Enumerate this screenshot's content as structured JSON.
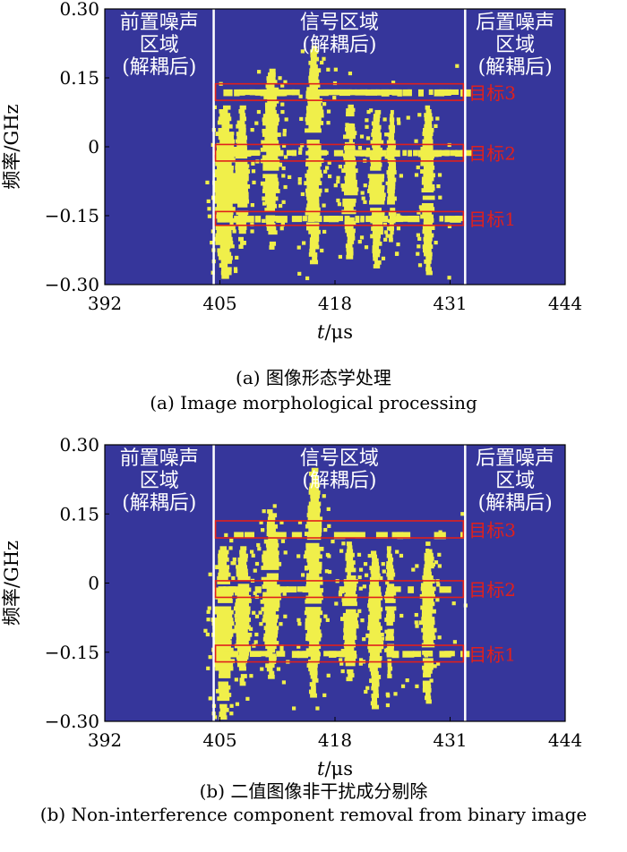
{
  "colors": {
    "background": "#36369b",
    "signal": "#f0ef4a",
    "divider": "#ffffff",
    "target_box": "#e0201c",
    "target_label": "#e0201c"
  },
  "chart_data": [
    {
      "type": "heatmap",
      "panel": "a",
      "xlabel_italic": "t",
      "xlabel_unit": "/μs",
      "ylabel": "频率/GHz",
      "xticks": [
        "392",
        "405",
        "418",
        "431",
        "444"
      ],
      "xtick_values": [
        392,
        405,
        418,
        431,
        444
      ],
      "yticks": [
        "0.30",
        "0.15",
        "0",
        "−0.15",
        "−0.30"
      ],
      "ytick_values": [
        0.3,
        0.15,
        0,
        -0.15,
        -0.3
      ],
      "xlim": [
        392,
        444
      ],
      "ylim": [
        -0.3,
        0.3
      ],
      "dividers_us": [
        404.3,
        432.7
      ],
      "regions": [
        {
          "lines": [
            "前置噪声",
            "区域",
            "(解耦后)"
          ]
        },
        {
          "lines": [
            "信号区域",
            "(解耦后)"
          ]
        },
        {
          "lines": [
            "后置噪声",
            "区域",
            "(解耦后)"
          ]
        }
      ],
      "targets": [
        {
          "label": "目标3",
          "freq_range_GHz": [
            0.101,
            0.137
          ]
        },
        {
          "label": "目标2",
          "freq_range_GHz": [
            -0.031,
            0.005
          ]
        },
        {
          "label": "目标1",
          "freq_range_GHz": [
            -0.171,
            -0.141
          ]
        }
      ],
      "blobs": [
        {
          "t_us": 405.6,
          "f_top": 0.09,
          "f_bottom": -0.28,
          "half_width_us": 0.9
        },
        {
          "t_us": 407.5,
          "f_top": 0.09,
          "f_bottom": -0.22,
          "half_width_us": 0.6
        },
        {
          "t_us": 410.8,
          "f_top": 0.17,
          "f_bottom": -0.22,
          "half_width_us": 0.7
        },
        {
          "t_us": 415.6,
          "f_top": 0.22,
          "f_bottom": -0.25,
          "half_width_us": 0.7
        },
        {
          "t_us": 419.7,
          "f_top": 0.1,
          "f_bottom": -0.24,
          "half_width_us": 0.6
        },
        {
          "t_us": 422.7,
          "f_top": 0.08,
          "f_bottom": -0.26,
          "half_width_us": 0.6
        },
        {
          "t_us": 424.4,
          "f_top": 0.08,
          "f_bottom": -0.2,
          "half_width_us": 0.4
        },
        {
          "t_us": 428.5,
          "f_top": 0.09,
          "f_bottom": -0.27,
          "half_width_us": 0.6
        }
      ],
      "bands": [
        {
          "f_GHz": 0.119,
          "t_start_us": 404.8,
          "t_end_us": 432.6,
          "strength": 0.9
        },
        {
          "f_GHz": -0.013,
          "t_start_us": 404.8,
          "t_end_us": 432.6,
          "strength": 0.6
        },
        {
          "f_GHz": -0.156,
          "t_start_us": 404.8,
          "t_end_us": 432.6,
          "strength": 0.8
        }
      ]
    },
    {
      "type": "heatmap",
      "panel": "b",
      "xlabel_italic": "t",
      "xlabel_unit": "/μs",
      "ylabel": "频率/GHz",
      "xticks": [
        "392",
        "405",
        "418",
        "431",
        "444"
      ],
      "xtick_values": [
        392,
        405,
        418,
        431,
        444
      ],
      "yticks": [
        "0.30",
        "0.15",
        "0",
        "−0.15",
        "−0.30"
      ],
      "ytick_values": [
        0.3,
        0.15,
        0,
        -0.15,
        -0.3
      ],
      "xlim": [
        392,
        444
      ],
      "ylim": [
        -0.3,
        0.3
      ],
      "dividers_us": [
        404.3,
        432.7
      ],
      "regions": [
        {
          "lines": [
            "前置噪声",
            "区域",
            "(解耦后)"
          ]
        },
        {
          "lines": [
            "信号区域",
            "(解耦后)"
          ]
        },
        {
          "lines": [
            "后置噪声",
            "区域",
            "(解耦后)"
          ]
        }
      ],
      "targets": [
        {
          "label": "目标3",
          "freq_range_GHz": [
            0.098,
            0.135
          ]
        },
        {
          "label": "目标2",
          "freq_range_GHz": [
            -0.031,
            0.005
          ]
        },
        {
          "label": "目标1",
          "freq_range_GHz": [
            -0.171,
            -0.135
          ]
        }
      ],
      "blobs": [
        {
          "t_us": 405.4,
          "f_top": 0.08,
          "f_bottom": -0.29,
          "half_width_us": 0.8
        },
        {
          "t_us": 407.6,
          "f_top": 0.08,
          "f_bottom": -0.22,
          "half_width_us": 0.6
        },
        {
          "t_us": 410.8,
          "f_top": 0.16,
          "f_bottom": -0.2,
          "half_width_us": 0.7
        },
        {
          "t_us": 415.6,
          "f_top": 0.25,
          "f_bottom": -0.24,
          "half_width_us": 0.7
        },
        {
          "t_us": 419.7,
          "f_top": 0.09,
          "f_bottom": -0.23,
          "half_width_us": 0.6
        },
        {
          "t_us": 422.5,
          "f_top": 0.07,
          "f_bottom": -0.27,
          "half_width_us": 0.6
        },
        {
          "t_us": 424.2,
          "f_top": 0.08,
          "f_bottom": -0.2,
          "half_width_us": 0.4
        },
        {
          "t_us": 428.5,
          "f_top": 0.09,
          "f_bottom": -0.26,
          "half_width_us": 0.6
        }
      ],
      "bands": [
        {
          "f_GHz": 0.105,
          "t_start_us": 404.8,
          "t_end_us": 432.6,
          "strength": 0.3
        },
        {
          "f_GHz": -0.013,
          "t_start_us": 404.8,
          "t_end_us": 432.6,
          "strength": 0.6
        },
        {
          "f_GHz": -0.153,
          "t_start_us": 404.8,
          "t_end_us": 432.6,
          "strength": 0.6
        }
      ]
    }
  ],
  "captions": [
    {
      "cn": "(a) 图像形态学处理",
      "en": "(a) Image morphological processing"
    },
    {
      "cn": "(b) 二值图像非干扰成分剔除",
      "en": "(b) Non-interference component removal from binary image"
    }
  ]
}
